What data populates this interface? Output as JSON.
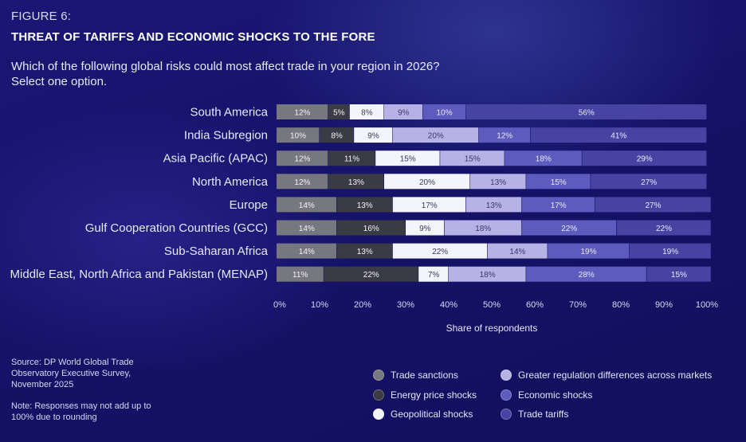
{
  "header": {
    "figure_label": "FIGURE 6:",
    "title": "THREAT OF TARIFFS AND ECONOMIC SHOCKS TO THE FORE",
    "question_line1": "Which of the following global risks could most affect trade in your region in 2026?",
    "question_line2": "Select one option."
  },
  "footer": {
    "source": "Source: DP World Global Trade Observatory Executive Survey, November 2025",
    "note": "Note: Responses may not add up to 100% due to rounding"
  },
  "chart_data": {
    "type": "bar",
    "orientation": "horizontal",
    "stacked": true,
    "categories": [
      "South America",
      "India Subregion",
      "Asia Pacific (APAC)",
      "North America",
      "Europe",
      "Gulf Cooperation Countries (GCC)",
      "Sub-Saharan Africa",
      "Middle East, North Africa and Pakistan (MENAP)"
    ],
    "series": [
      {
        "name": "Trade sanctions",
        "color": "#77777f",
        "label_color": "#f2f2f6",
        "values": [
          12,
          10,
          12,
          12,
          14,
          14,
          14,
          11
        ]
      },
      {
        "name": "Energy price shocks",
        "color": "#3b3b45",
        "label_color": "#f2f2f6",
        "values": [
          5,
          8,
          11,
          13,
          13,
          16,
          13,
          22
        ]
      },
      {
        "name": "Geopolitical shocks",
        "color": "#f4f4fb",
        "label_color": "#3a3a58",
        "values": [
          8,
          9,
          15,
          20,
          17,
          9,
          22,
          7
        ]
      },
      {
        "name": "Greater regulation differences across markets",
        "color": "#b7b2e6",
        "label_color": "#3a3a62",
        "values": [
          9,
          20,
          15,
          13,
          13,
          18,
          14,
          18
        ]
      },
      {
        "name": "Economic shocks",
        "color": "#5d5bbd",
        "label_color": "#e9e9fb",
        "values": [
          10,
          12,
          18,
          15,
          17,
          22,
          19,
          28
        ]
      },
      {
        "name": "Trade tariffs",
        "color": "#4643a2",
        "label_color": "#e9e9fb",
        "values": [
          56,
          41,
          29,
          27,
          27,
          22,
          19,
          15
        ]
      }
    ],
    "xlabel": "Share of respondents",
    "xlim": [
      0,
      100
    ],
    "xticks": [
      "0%",
      "10%",
      "20%",
      "30%",
      "40%",
      "50%",
      "60%",
      "70%",
      "80%",
      "90%",
      "100%"
    ],
    "value_suffix": "%",
    "legend_position": "bottom-right"
  }
}
